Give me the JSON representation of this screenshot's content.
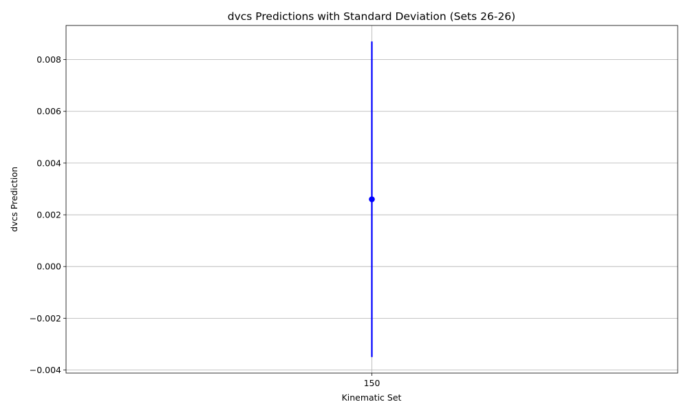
{
  "chart_data": {
    "type": "scatter",
    "title": "dvcs Predictions with Standard Deviation (Sets 26-26)",
    "xlabel": "Kinematic Set",
    "ylabel": "dvcs Prediction",
    "x_ticks": [
      "150"
    ],
    "y_ticks": [
      -0.004,
      -0.002,
      0.0,
      0.002,
      0.004,
      0.006,
      0.008
    ],
    "y_tick_labels": [
      "−0.004",
      "−0.002",
      "0.000",
      "0.002",
      "0.004",
      "0.006",
      "0.008"
    ],
    "ylim": [
      -0.00412,
      0.00932
    ],
    "grid": true,
    "series": [
      {
        "x": [
          "150"
        ],
        "y": [
          0.0026
        ],
        "std": [
          0.0061
        ],
        "color": "#0000ff"
      }
    ]
  }
}
